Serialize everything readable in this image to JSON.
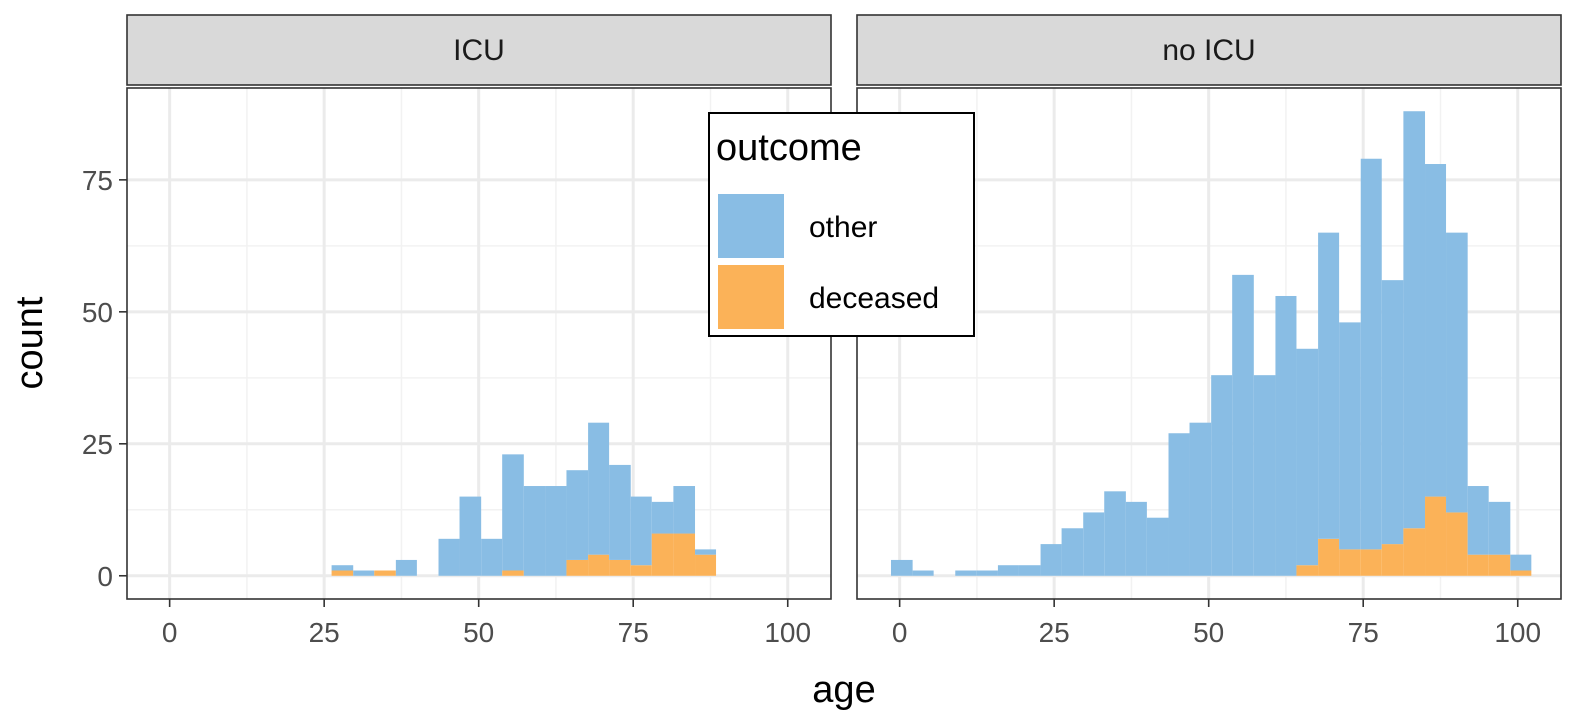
{
  "chart_data": {
    "type": "histogram",
    "xlabel": "age",
    "ylabel": "count",
    "facet_by": "ICU status",
    "bin_width": 3.45,
    "stacked": true,
    "xlim": [
      -6.9,
      107.0
    ],
    "ylim": [
      -4.4,
      92.4
    ],
    "x_ticks": [
      0,
      25,
      50,
      75,
      100
    ],
    "y_ticks": [
      0,
      25,
      50,
      75
    ],
    "grid": true,
    "legend": {
      "title": "outcome",
      "position": "top-center",
      "entries": [
        {
          "label": "other",
          "color": "#89BDE4"
        },
        {
          "label": "deceased",
          "color": "#FBB258"
        }
      ]
    },
    "panels": [
      {
        "strip": "ICU",
        "bins": [
          {
            "x0": 26.2,
            "x1": 29.7,
            "other": 1,
            "deceased": 1
          },
          {
            "x0": 29.7,
            "x1": 33.1,
            "other": 1,
            "deceased": 0
          },
          {
            "x0": 33.1,
            "x1": 36.6,
            "other": 0,
            "deceased": 1
          },
          {
            "x0": 36.6,
            "x1": 40.0,
            "other": 3,
            "deceased": 0
          },
          {
            "x0": 43.5,
            "x1": 46.9,
            "other": 7,
            "deceased": 0
          },
          {
            "x0": 46.9,
            "x1": 50.4,
            "other": 15,
            "deceased": 0
          },
          {
            "x0": 50.4,
            "x1": 53.8,
            "other": 7,
            "deceased": 0
          },
          {
            "x0": 53.8,
            "x1": 57.3,
            "other": 22,
            "deceased": 1
          },
          {
            "x0": 57.3,
            "x1": 60.8,
            "other": 17,
            "deceased": 0
          },
          {
            "x0": 60.8,
            "x1": 64.2,
            "other": 17,
            "deceased": 0
          },
          {
            "x0": 64.2,
            "x1": 67.7,
            "other": 17,
            "deceased": 3
          },
          {
            "x0": 67.7,
            "x1": 71.1,
            "other": 25,
            "deceased": 4
          },
          {
            "x0": 71.1,
            "x1": 74.6,
            "other": 18,
            "deceased": 3
          },
          {
            "x0": 74.6,
            "x1": 78.0,
            "other": 13,
            "deceased": 2
          },
          {
            "x0": 78.0,
            "x1": 81.5,
            "other": 6,
            "deceased": 8
          },
          {
            "x0": 81.5,
            "x1": 85.0,
            "other": 9,
            "deceased": 8
          },
          {
            "x0": 85.0,
            "x1": 88.4,
            "other": 1,
            "deceased": 4
          }
        ]
      },
      {
        "strip": "no ICU",
        "bins": [
          {
            "x0": -1.4,
            "x1": 2.1,
            "other": 3,
            "deceased": 0
          },
          {
            "x0": 2.1,
            "x1": 5.5,
            "other": 1,
            "deceased": 0
          },
          {
            "x0": 9.0,
            "x1": 12.4,
            "other": 1,
            "deceased": 0
          },
          {
            "x0": 12.4,
            "x1": 15.9,
            "other": 1,
            "deceased": 0
          },
          {
            "x0": 15.9,
            "x1": 19.3,
            "other": 2,
            "deceased": 0
          },
          {
            "x0": 19.3,
            "x1": 22.8,
            "other": 2,
            "deceased": 0
          },
          {
            "x0": 22.8,
            "x1": 26.2,
            "other": 6,
            "deceased": 0
          },
          {
            "x0": 26.2,
            "x1": 29.7,
            "other": 9,
            "deceased": 0
          },
          {
            "x0": 29.7,
            "x1": 33.1,
            "other": 12,
            "deceased": 0
          },
          {
            "x0": 33.1,
            "x1": 36.6,
            "other": 16,
            "deceased": 0
          },
          {
            "x0": 36.6,
            "x1": 40.0,
            "other": 14,
            "deceased": 0
          },
          {
            "x0": 40.0,
            "x1": 43.5,
            "other": 11,
            "deceased": 0
          },
          {
            "x0": 43.5,
            "x1": 46.9,
            "other": 27,
            "deceased": 0
          },
          {
            "x0": 46.9,
            "x1": 50.4,
            "other": 29,
            "deceased": 0
          },
          {
            "x0": 50.4,
            "x1": 53.8,
            "other": 38,
            "deceased": 0
          },
          {
            "x0": 53.8,
            "x1": 57.3,
            "other": 57,
            "deceased": 0
          },
          {
            "x0": 57.3,
            "x1": 60.8,
            "other": 38,
            "deceased": 0
          },
          {
            "x0": 60.8,
            "x1": 64.2,
            "other": 53,
            "deceased": 0
          },
          {
            "x0": 64.2,
            "x1": 67.7,
            "other": 41,
            "deceased": 2
          },
          {
            "x0": 67.7,
            "x1": 71.1,
            "other": 58,
            "deceased": 7
          },
          {
            "x0": 71.1,
            "x1": 74.6,
            "other": 43,
            "deceased": 5
          },
          {
            "x0": 74.6,
            "x1": 78.0,
            "other": 74,
            "deceased": 5
          },
          {
            "x0": 78.0,
            "x1": 81.5,
            "other": 50,
            "deceased": 6
          },
          {
            "x0": 81.5,
            "x1": 85.0,
            "other": 79,
            "deceased": 9
          },
          {
            "x0": 85.0,
            "x1": 88.4,
            "other": 63,
            "deceased": 15
          },
          {
            "x0": 88.4,
            "x1": 91.9,
            "other": 53,
            "deceased": 12
          },
          {
            "x0": 91.9,
            "x1": 95.3,
            "other": 13,
            "deceased": 4
          },
          {
            "x0": 95.3,
            "x1": 98.8,
            "other": 10,
            "deceased": 4
          },
          {
            "x0": 98.8,
            "x1": 102.2,
            "other": 3,
            "deceased": 1
          }
        ]
      }
    ]
  }
}
